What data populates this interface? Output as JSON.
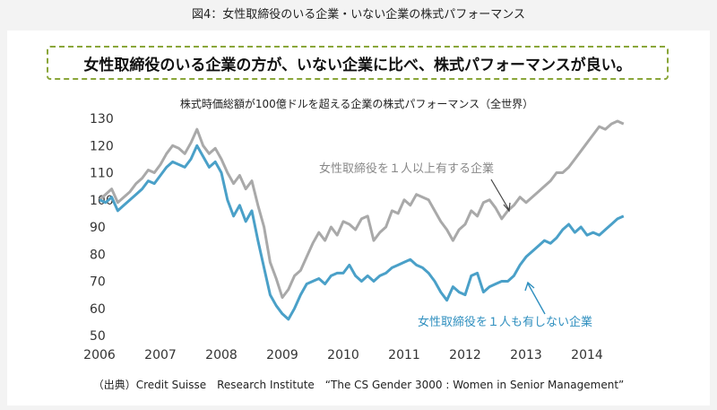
{
  "figure_title": "図4：女性取締役のいる企業・いない企業の株式パフォーマンス",
  "headline": "女性取締役のいる企業の方が、いない企業に比べ、株式パフォーマンスが良い。",
  "source": "（出典）Credit Suisse　Research Institute　“The CS Gender 3000 : Women in Senior Management”",
  "chart_data": {
    "type": "line",
    "title": "株式時価総額が100億ドルを超える企業の株式パフォーマンス（全世界）",
    "xlabel": "",
    "ylabel": "",
    "xlim": [
      2005.75,
      2014.75
    ],
    "ylim": [
      50,
      130
    ],
    "yticks": [
      50,
      60,
      70,
      80,
      90,
      100,
      110,
      120,
      130
    ],
    "xticks": [
      "2006",
      "2007",
      "2008",
      "2009",
      "2010",
      "2011",
      "2012",
      "2013",
      "2014"
    ],
    "grid": false,
    "colors": {
      "with_women": "#a9a9a9",
      "without_women": "#4aa0c8"
    },
    "series": [
      {
        "name": "女性取締役を１人以上有する企業",
        "x": [
          2006.0,
          2006.1,
          2006.2,
          2006.3,
          2006.4,
          2006.5,
          2006.6,
          2006.7,
          2006.8,
          2006.9,
          2007.0,
          2007.1,
          2007.2,
          2007.3,
          2007.4,
          2007.5,
          2007.6,
          2007.7,
          2007.8,
          2007.9,
          2008.0,
          2008.1,
          2008.2,
          2008.3,
          2008.4,
          2008.5,
          2008.6,
          2008.7,
          2008.8,
          2008.9,
          2009.0,
          2009.1,
          2009.2,
          2009.3,
          2009.4,
          2009.5,
          2009.6,
          2009.7,
          2009.8,
          2009.9,
          2010.0,
          2010.1,
          2010.2,
          2010.3,
          2010.4,
          2010.5,
          2010.6,
          2010.7,
          2010.8,
          2010.9,
          2011.0,
          2011.1,
          2011.2,
          2011.3,
          2011.4,
          2011.5,
          2011.6,
          2011.7,
          2011.8,
          2011.9,
          2012.0,
          2012.1,
          2012.2,
          2012.3,
          2012.4,
          2012.5,
          2012.6,
          2012.7,
          2012.8,
          2012.9,
          2013.0,
          2013.1,
          2013.2,
          2013.3,
          2013.4,
          2013.5,
          2013.6,
          2013.7,
          2013.8,
          2013.9,
          2014.0,
          2014.1,
          2014.2,
          2014.3,
          2014.4,
          2014.5,
          2014.6
        ],
        "values": [
          100,
          102,
          104,
          99,
          101,
          103,
          106,
          108,
          111,
          110,
          113,
          117,
          120,
          119,
          117,
          121,
          126,
          120,
          117,
          119,
          115,
          110,
          106,
          109,
          104,
          107,
          98,
          90,
          77,
          71,
          64,
          67,
          72,
          74,
          79,
          84,
          88,
          85,
          90,
          87,
          92,
          91,
          89,
          93,
          94,
          85,
          88,
          90,
          96,
          95,
          100,
          98,
          102,
          101,
          100,
          96,
          92,
          89,
          85,
          89,
          91,
          96,
          94,
          99,
          100,
          97,
          93,
          96,
          98,
          101,
          99,
          101,
          103,
          105,
          107,
          110,
          110,
          112,
          115,
          118,
          121,
          124,
          127,
          126,
          128,
          129,
          128
        ]
      },
      {
        "name": "女性取締役を１人も有しない企業",
        "x": [
          2006.0,
          2006.1,
          2006.2,
          2006.3,
          2006.4,
          2006.5,
          2006.6,
          2006.7,
          2006.8,
          2006.9,
          2007.0,
          2007.1,
          2007.2,
          2007.3,
          2007.4,
          2007.5,
          2007.6,
          2007.7,
          2007.8,
          2007.9,
          2008.0,
          2008.1,
          2008.2,
          2008.3,
          2008.4,
          2008.5,
          2008.6,
          2008.7,
          2008.8,
          2008.9,
          2009.0,
          2009.1,
          2009.2,
          2009.3,
          2009.4,
          2009.5,
          2009.6,
          2009.7,
          2009.8,
          2009.9,
          2010.0,
          2010.1,
          2010.2,
          2010.3,
          2010.4,
          2010.5,
          2010.6,
          2010.7,
          2010.8,
          2010.9,
          2011.0,
          2011.1,
          2011.2,
          2011.3,
          2011.4,
          2011.5,
          2011.6,
          2011.7,
          2011.8,
          2011.9,
          2012.0,
          2012.1,
          2012.2,
          2012.3,
          2012.4,
          2012.5,
          2012.6,
          2012.7,
          2012.8,
          2012.9,
          2013.0,
          2013.1,
          2013.2,
          2013.3,
          2013.4,
          2013.5,
          2013.6,
          2013.7,
          2013.8,
          2013.9,
          2014.0,
          2014.1,
          2014.2,
          2014.3,
          2014.4,
          2014.5,
          2014.6
        ],
        "values": [
          100,
          99,
          101,
          96,
          98,
          100,
          102,
          104,
          107,
          106,
          109,
          112,
          114,
          113,
          112,
          115,
          120,
          116,
          112,
          114,
          110,
          100,
          94,
          98,
          92,
          96,
          85,
          75,
          65,
          61,
          58,
          56,
          60,
          65,
          69,
          70,
          71,
          69,
          72,
          73,
          73,
          76,
          72,
          70,
          72,
          70,
          72,
          73,
          75,
          76,
          77,
          78,
          76,
          75,
          73,
          70,
          66,
          63,
          68,
          66,
          65,
          72,
          73,
          66,
          68,
          69,
          70,
          70,
          72,
          76,
          79,
          81,
          83,
          85,
          84,
          86,
          89,
          91,
          88,
          90,
          87,
          88,
          87,
          89,
          91,
          93,
          94
        ]
      }
    ],
    "annotations": [
      {
        "text": "女性取締役を１人以上有する企業",
        "series": 0
      },
      {
        "text": "女性取締役を１人も有しない企業",
        "series": 1
      }
    ]
  }
}
